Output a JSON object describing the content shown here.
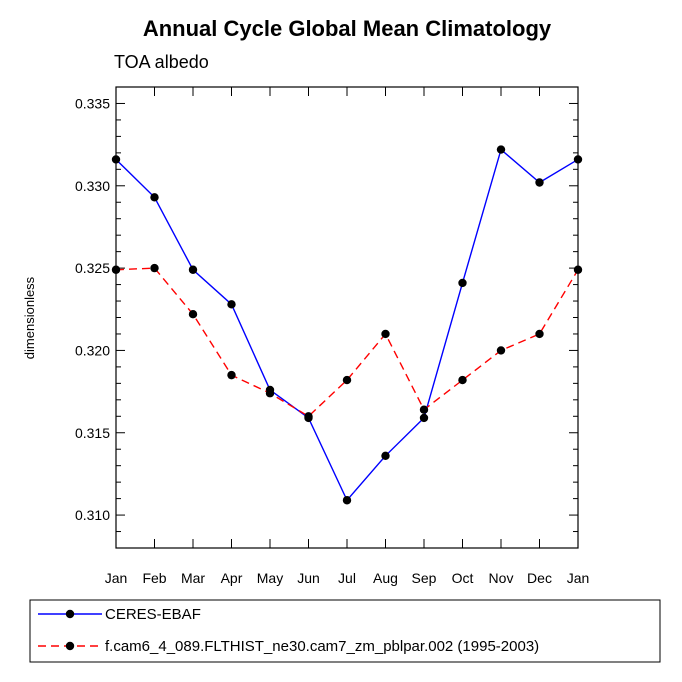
{
  "chart_data": {
    "type": "line",
    "title": "Annual Cycle Global Mean Climatology",
    "subtitle": "TOA albedo",
    "xlabel": "",
    "ylabel": "dimensionless",
    "categories": [
      "Jan",
      "Feb",
      "Mar",
      "Apr",
      "May",
      "Jun",
      "Jul",
      "Aug",
      "Sep",
      "Oct",
      "Nov",
      "Dec",
      "Jan"
    ],
    "ylim": [
      0.308,
      0.336
    ],
    "yticks": [
      0.31,
      0.315,
      0.32,
      0.325,
      0.33,
      0.335
    ],
    "ytick_labels": [
      "0.310",
      "0.315",
      "0.320",
      "0.325",
      "0.330",
      "0.335"
    ],
    "grid": false,
    "legend_position": "bottom",
    "series": [
      {
        "name": "CERES-EBAF",
        "color": "#0000ff",
        "dash": "solid",
        "values": [
          0.3316,
          0.3293,
          0.3249,
          0.3228,
          0.3176,
          0.3159,
          0.3109,
          0.3136,
          0.3159,
          0.3241,
          0.3322,
          0.3302,
          0.3316
        ]
      },
      {
        "name": "f.cam6_4_089.FLTHIST_ne30.cam7_zm_pblpar.002 (1995-2003)",
        "color": "#ff0000",
        "dash": "dashed",
        "values": [
          0.3249,
          0.325,
          0.3222,
          0.3185,
          0.3174,
          0.316,
          0.3182,
          0.321,
          0.3164,
          0.3182,
          0.32,
          0.321,
          0.3249
        ]
      }
    ]
  }
}
